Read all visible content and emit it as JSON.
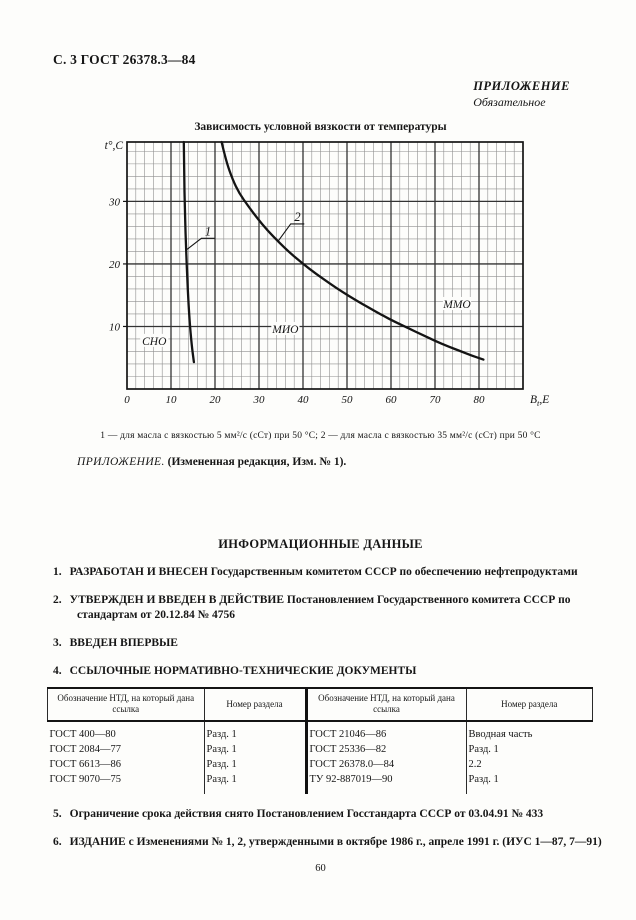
{
  "page": {
    "header": "С. 3 ГОСТ 26378.3—84",
    "appendix_label": "ПРИЛОЖЕНИЕ",
    "appendix_sublabel": "Обязательное",
    "figure_caption": "1 — для масла с вязкостью 5 мм²/с (сСт) при 50 °С; 2 — для масла с вязкостью 35 мм²/с (сСт) при 50 °С",
    "appendix_note_italic": "ПРИЛОЖЕНИЕ.",
    "appendix_note_bold": "(Измененная редакция, Изм. № 1).",
    "section_title": "ИНФОРМАЦИОННЫЕ ДАННЫЕ",
    "items_before_table": [
      {
        "num": "1.",
        "text": "РАЗРАБОТАН И ВНЕСЕН Государственным комитетом СССР по обеспечению нефтепродуктами"
      },
      {
        "num": "2.",
        "text": "УТВЕРЖДЕН И ВВЕДЕН В ДЕЙСТВИЕ Постановлением Государственного комитета СССР по стандартам от 20.12.84 № 4756"
      },
      {
        "num": "3.",
        "text": "ВВЕДЕН ВПЕРВЫЕ"
      },
      {
        "num": "4.",
        "text": "ССЫЛОЧНЫЕ НОРМАТИВНО-ТЕХНИЧЕСКИЕ ДОКУМЕНТЫ"
      }
    ],
    "items_after_table": [
      {
        "num": "5.",
        "text": "Ограничение срока действия снято Постановлением Госстандарта СССР от 03.04.91 № 433"
      },
      {
        "num": "6.",
        "text": "ИЗДАНИЕ с Изменениями № 1, 2, утвержденными в октябре 1986 г., апреле 1991 г. (ИУС 1—87, 7—91)"
      }
    ],
    "page_number": "60"
  },
  "table": {
    "headers": [
      "Обозначение НТД, на который дана ссылка",
      "Номер раздела",
      "Обозначение НТД, на который дана ссылка",
      "Номер раздела"
    ],
    "rows": [
      [
        "ГОСТ 400—80",
        "Разд. 1",
        "ГОСТ 21046—86",
        "Вводная часть"
      ],
      [
        "ГОСТ 2084—77",
        "Разд. 1",
        "ГОСТ 25336—82",
        "Разд. 1"
      ],
      [
        "ГОСТ 6613—86",
        "Разд. 1",
        "ГОСТ 26378.0—84",
        "2.2"
      ],
      [
        "ГОСТ 9070—75",
        "Разд. 1",
        "ТУ 92-887019—90",
        "Разд. 1"
      ]
    ]
  },
  "chart_data": {
    "type": "line",
    "title": "Зависимость условной вязкости от температуры",
    "ylabel": "t°,C",
    "xlabel": {
      "base": "В",
      "sub": "t",
      "rest": ",Е"
    },
    "xlim": [
      0,
      90
    ],
    "ylim": [
      0,
      39.5
    ],
    "xticks": [
      0,
      10,
      20,
      30,
      40,
      50,
      60,
      70,
      80
    ],
    "yticks": [
      10,
      20,
      30
    ],
    "grid": {
      "minor_step": 2,
      "major_step": 10
    },
    "legend_note": "1 — масло вязкостью 5 мм²/с (сСт) при 50 °С; 2 — масло вязкостью 35 мм²/с (сСт) при 50 °С",
    "series": [
      {
        "name": "1",
        "points": [
          [
            12.9,
            39.5
          ],
          [
            13.0,
            34.0
          ],
          [
            13.15,
            29.0
          ],
          [
            13.3,
            25.0
          ],
          [
            13.5,
            21.0
          ],
          [
            13.8,
            16.0
          ],
          [
            14.2,
            11.0
          ],
          [
            14.7,
            7.0
          ],
          [
            15.2,
            4.3
          ]
        ]
      },
      {
        "name": "2",
        "points": [
          [
            21.5,
            39.5
          ],
          [
            22.5,
            36.5
          ],
          [
            24,
            33.5
          ],
          [
            25.5,
            31.3
          ],
          [
            27.5,
            29.3
          ],
          [
            29.5,
            27.4
          ],
          [
            32,
            25.3
          ],
          [
            34.5,
            23.5
          ],
          [
            37,
            21.8
          ],
          [
            40,
            20.0
          ],
          [
            43,
            18.4
          ],
          [
            46,
            16.9
          ],
          [
            49,
            15.5
          ],
          [
            52,
            14.2
          ],
          [
            55,
            13.0
          ],
          [
            58,
            11.8
          ],
          [
            61,
            10.7
          ],
          [
            64,
            9.7
          ],
          [
            67,
            8.7
          ],
          [
            70,
            7.7
          ],
          [
            73,
            6.8
          ],
          [
            76,
            6.0
          ],
          [
            78.5,
            5.3
          ],
          [
            81,
            4.7
          ]
        ]
      }
    ],
    "series_labels": [
      {
        "text": "1",
        "leader": [
          [
            19.9,
            24.1
          ],
          [
            16.9,
            24.1
          ],
          [
            13.6,
            22.3
          ]
        ]
      },
      {
        "text": "2",
        "leader": [
          [
            40.3,
            26.4
          ],
          [
            37.2,
            26.4
          ],
          [
            34.3,
            23.6
          ]
        ]
      }
    ],
    "zone_labels": [
      {
        "text": "СНО",
        "x": 6.2,
        "y": 7.7
      },
      {
        "text": "МИО",
        "x": 36.0,
        "y": 9.6
      },
      {
        "text": "ММО",
        "x": 75.0,
        "y": 13.6
      }
    ]
  }
}
